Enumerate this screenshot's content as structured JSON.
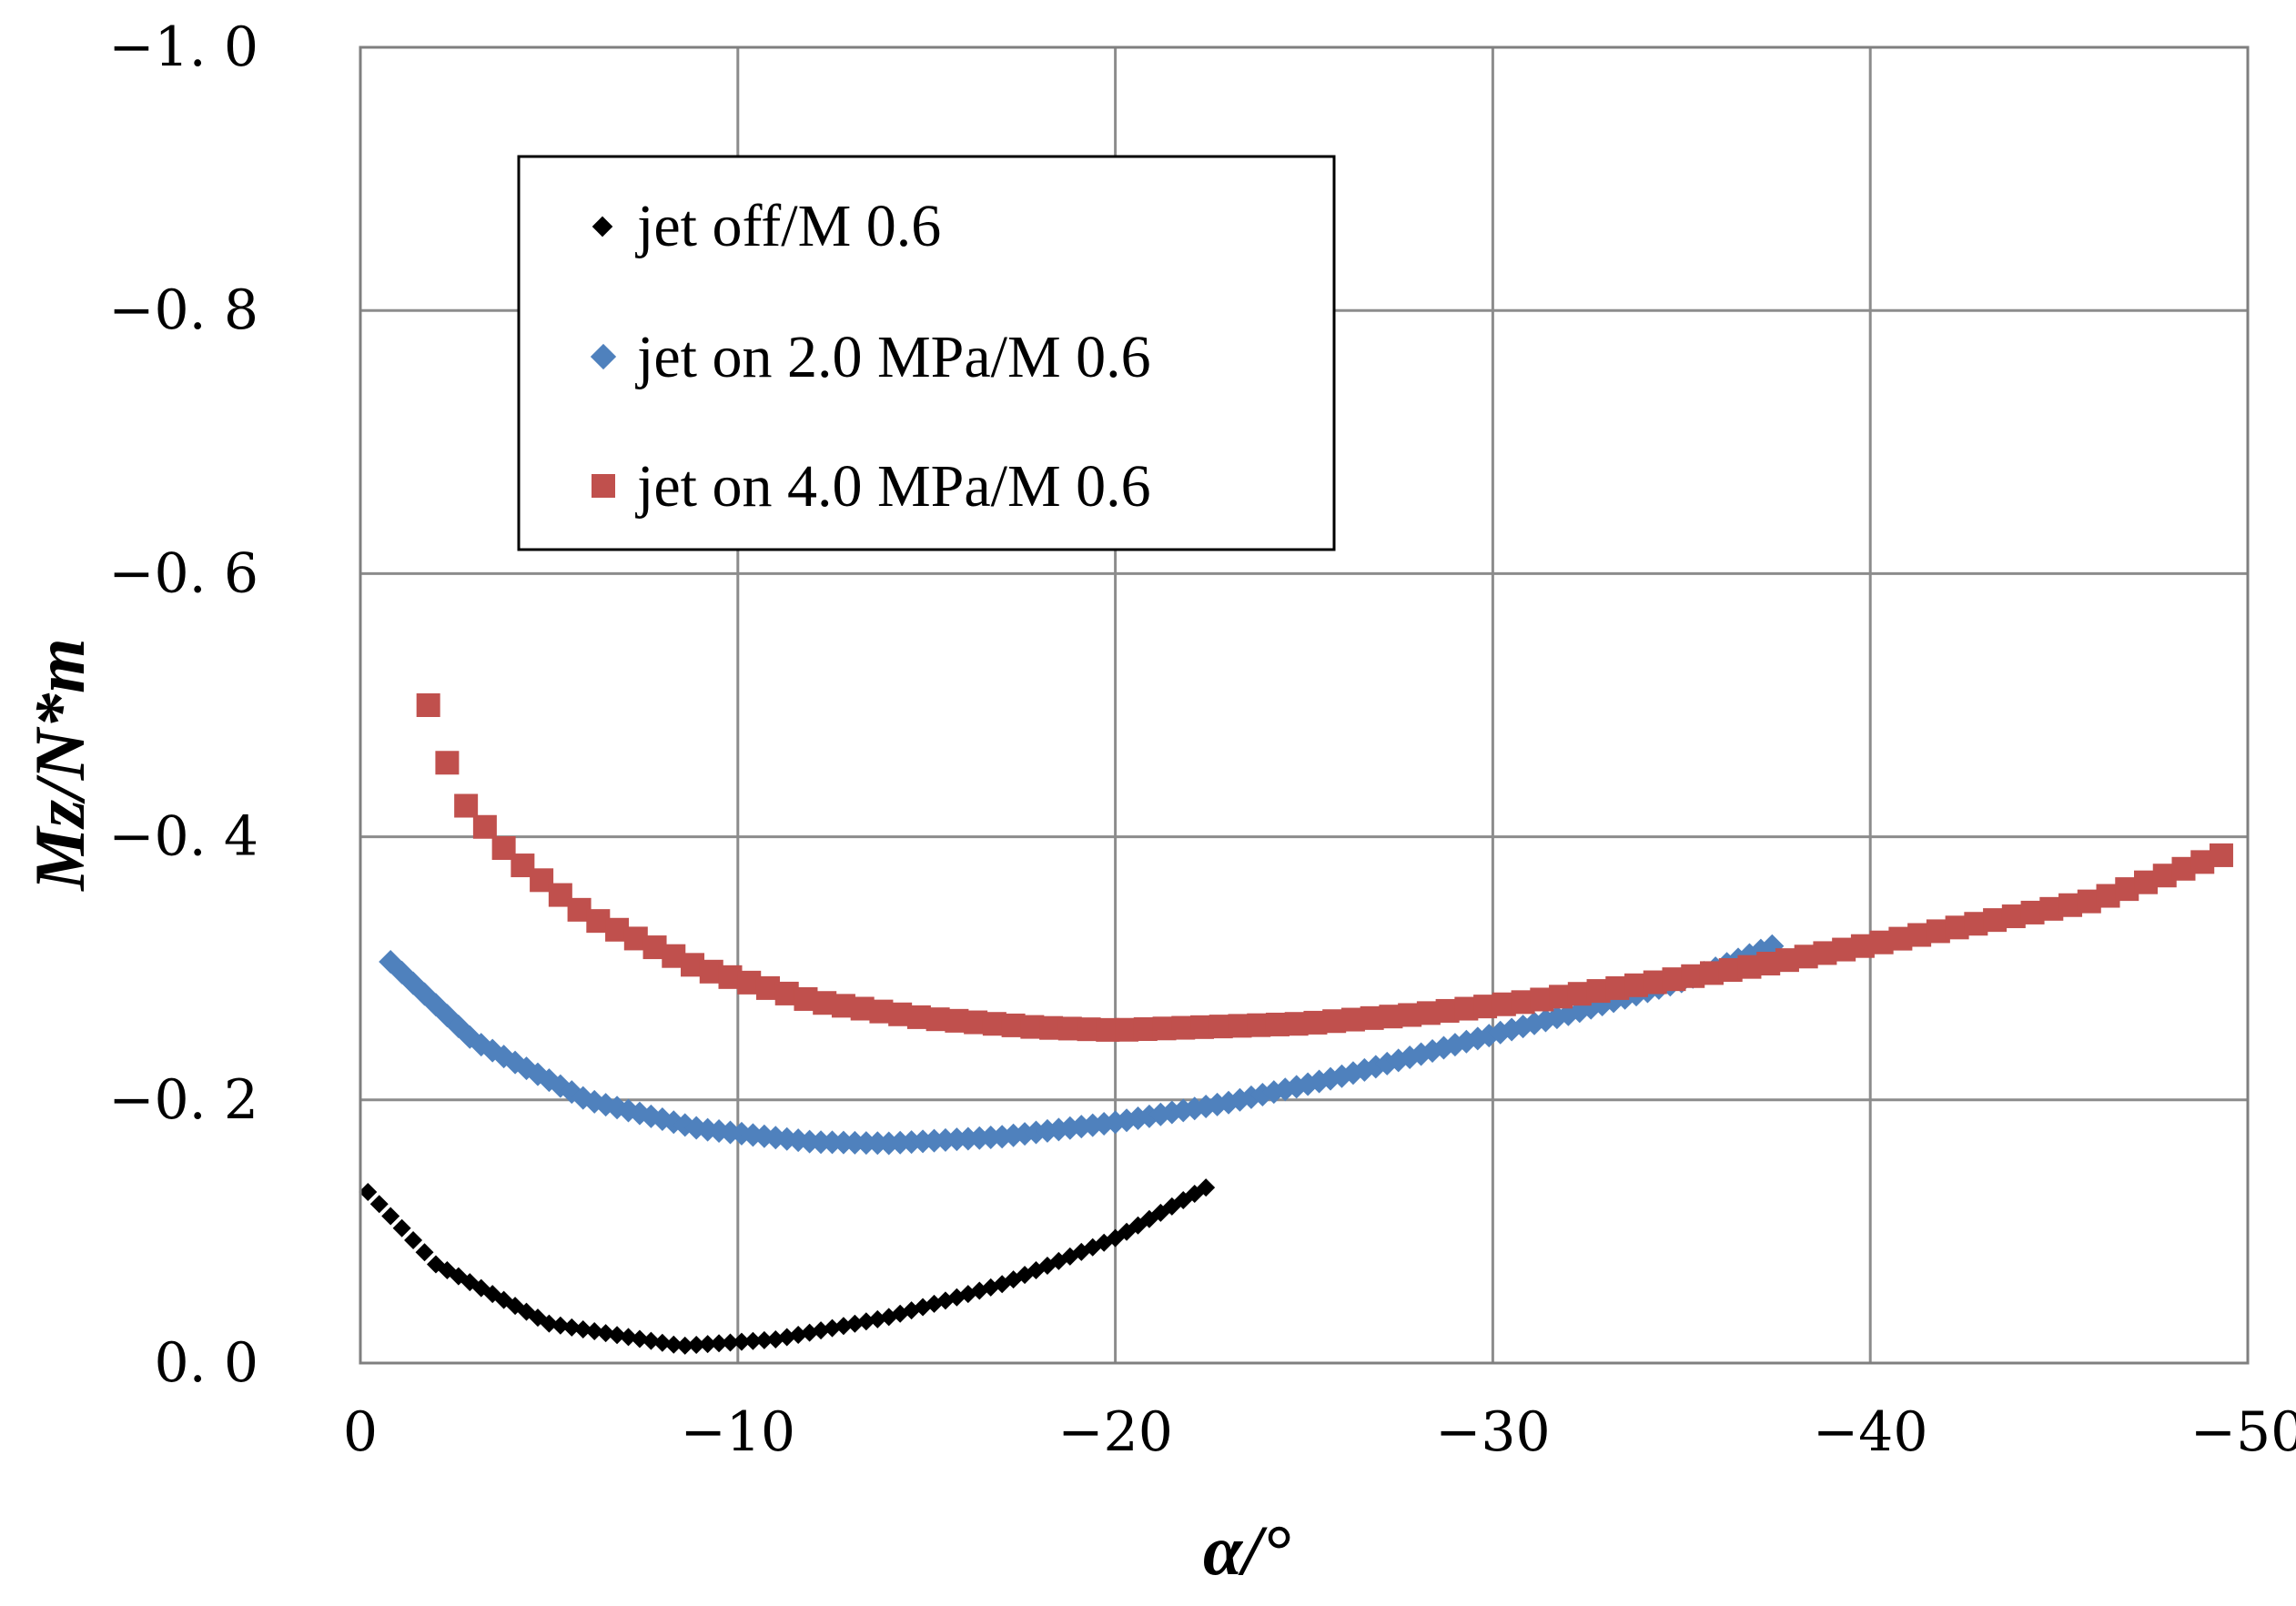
{
  "chart_data": {
    "type": "scatter",
    "title": "",
    "xlabel": "α/°",
    "ylabel": "Mz/N*m",
    "xlim": [
      0,
      -50
    ],
    "ylim": [
      0.0,
      -1.0
    ],
    "xticks": [
      0,
      -10,
      -20,
      -30,
      -40,
      -50
    ],
    "yticks": [
      0.0,
      -0.2,
      -0.4,
      -0.6,
      -0.8,
      -1.0
    ],
    "xtick_labels": [
      "0",
      "−10",
      "−20",
      "−30",
      "−40",
      "−50"
    ],
    "ytick_labels": [
      "0. 0",
      "−0. 2",
      "−0. 4",
      "−0. 6",
      "−0. 8",
      "−1. 0"
    ],
    "grid": true,
    "legend_position": "top-left",
    "series": [
      {
        "name": "jet off/M 0.6",
        "color": "#000000",
        "marker": "diamond-small",
        "x_range": [
          -0.2,
          -22.5
        ],
        "anchors": [
          [
            -0.2,
            -0.13
          ],
          [
            -2,
            -0.075
          ],
          [
            -5,
            -0.03
          ],
          [
            -8.5,
            -0.013
          ],
          [
            -11,
            -0.018
          ],
          [
            -14,
            -0.035
          ],
          [
            -17,
            -0.06
          ],
          [
            -20,
            -0.095
          ],
          [
            -22.5,
            -0.135
          ]
        ]
      },
      {
        "name": "jet on 2.0 MPa/M 0.6",
        "color": "#4F81BD",
        "marker": "diamond",
        "x_range": [
          -0.8,
          -37.5
        ],
        "anchors": [
          [
            -0.8,
            -0.305
          ],
          [
            -3,
            -0.245
          ],
          [
            -6,
            -0.2
          ],
          [
            -9,
            -0.178
          ],
          [
            -12,
            -0.168
          ],
          [
            -14,
            -0.167
          ],
          [
            -17,
            -0.172
          ],
          [
            -20,
            -0.183
          ],
          [
            -23,
            -0.198
          ],
          [
            -26,
            -0.218
          ],
          [
            -29,
            -0.242
          ],
          [
            -32,
            -0.265
          ],
          [
            -35,
            -0.29
          ],
          [
            -37.5,
            -0.318
          ]
        ]
      },
      {
        "name": "jet on 4.0 MPa/M 0.6",
        "color": "#C0504D",
        "marker": "square",
        "x_range": [
          -1.8,
          -49.5
        ],
        "anchors": [
          [
            -1.8,
            -0.5
          ],
          [
            -2.6,
            -0.43
          ],
          [
            -4,
            -0.385
          ],
          [
            -6,
            -0.34
          ],
          [
            -9,
            -0.3
          ],
          [
            -12,
            -0.275
          ],
          [
            -15,
            -0.262
          ],
          [
            -18,
            -0.255
          ],
          [
            -20,
            -0.253
          ],
          [
            -22,
            -0.255
          ],
          [
            -25,
            -0.258
          ],
          [
            -28,
            -0.265
          ],
          [
            -31,
            -0.275
          ],
          [
            -34,
            -0.288
          ],
          [
            -37,
            -0.302
          ],
          [
            -40,
            -0.318
          ],
          [
            -43,
            -0.335
          ],
          [
            -46,
            -0.352
          ],
          [
            -49.5,
            -0.388
          ]
        ]
      }
    ]
  }
}
